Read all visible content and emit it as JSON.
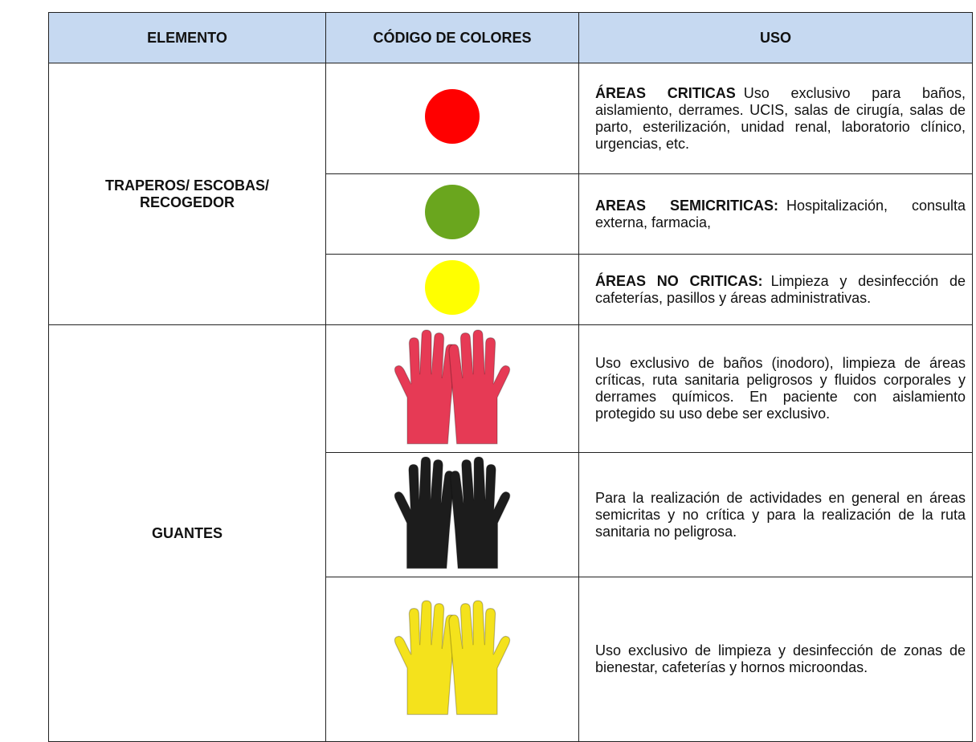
{
  "table": {
    "headers": [
      "ELEMENTO",
      "CÓDIGO DE COLORES",
      "USO"
    ],
    "groups": [
      {
        "element": "TRAPEROS/ ESCOBAS/ RECOGEDOR",
        "rows": [
          {
            "color": "#ff0000",
            "bold": "ÁREAS CRITICAS",
            "text": "Uso exclusivo para baños, aislamiento, derrames. UCIS, salas de cirugía, salas de parto, esterilización, unidad renal, laboratorio clínico, urgencias, etc."
          },
          {
            "color": "#6aa61e",
            "bold": "AREAS SEMICRITICAS:",
            "text": "Hospitalización, consulta externa, farmacia,"
          },
          {
            "color": "#ffff00",
            "bold": "ÁREAS NO CRITICAS:",
            "text": "Limpieza y desinfección de cafeterías, pasillos y áreas administrativas."
          }
        ]
      },
      {
        "element": "GUANTES",
        "rows": [
          {
            "glove": "#e63a55",
            "text": "Uso exclusivo de baños (inodoro), limpieza de áreas críticas, ruta sanitaria peligrosos y fluidos corporales y derrames químicos. En paciente con aislamiento protegido su uso debe ser exclusivo."
          },
          {
            "glove": "#1c1c1c",
            "text": "Para la realización de actividades en general en áreas semicritas y no crítica y para la realización de la ruta sanitaria no peligrosa."
          },
          {
            "glove": "#f4e21c",
            "text": "Uso exclusivo de limpieza y desinfección de zonas de bienestar, cafeterías y hornos microondas."
          }
        ]
      }
    ]
  }
}
